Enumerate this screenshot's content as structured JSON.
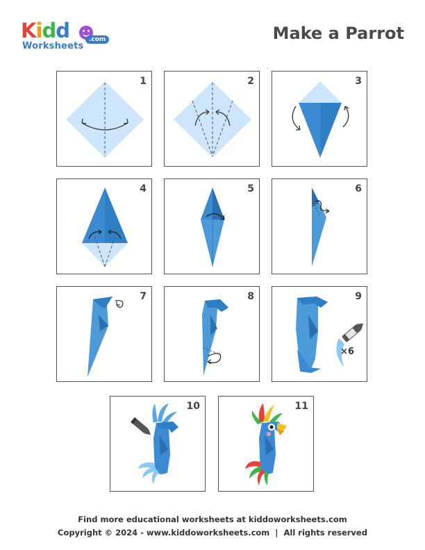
{
  "logo": {
    "kiddo": "Kiddo",
    "worksheets": "Worksheets",
    "com": ".com"
  },
  "title": "Make a Parrot",
  "steps": [
    {
      "number": "1"
    },
    {
      "number": "2"
    },
    {
      "number": "3"
    },
    {
      "number": "4"
    },
    {
      "number": "5"
    },
    {
      "number": "6"
    },
    {
      "number": "7"
    },
    {
      "number": "8"
    },
    {
      "number": "9"
    },
    {
      "number": "10"
    },
    {
      "number": "11"
    }
  ],
  "step9_multiplier": "×6",
  "footer": {
    "line1": "Find more educational worksheets at kiddoworksheets.com",
    "line2": "Copyright © 2024 - www.kiddoworksheets.com  |  All rights reserved"
  },
  "colors": {
    "paper_light": "#cde6fb",
    "paper_mid": "#5aa6e0",
    "paper_dark": "#2f7fc4",
    "outline": "#555555"
  }
}
